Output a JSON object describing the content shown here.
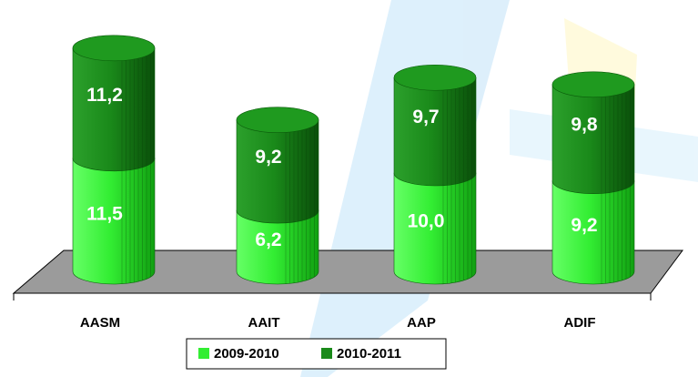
{
  "chart_data": {
    "type": "bar",
    "stacked": true,
    "categories": [
      "AASM",
      "AAIT",
      "AAP",
      "ADIF"
    ],
    "series": [
      {
        "name": "2009-2010",
        "color": "#33ee33",
        "values": [
          11.5,
          6.2,
          10.0,
          9.2
        ],
        "value_labels": [
          "11,5",
          "6,2",
          "10,0",
          "9,2"
        ]
      },
      {
        "name": "2010-2011",
        "color": "#1a8a1a",
        "values": [
          11.2,
          9.2,
          9.7,
          9.8
        ],
        "value_labels": [
          "11,2",
          "9,2",
          "9,7",
          "9,8"
        ]
      }
    ]
  }
}
